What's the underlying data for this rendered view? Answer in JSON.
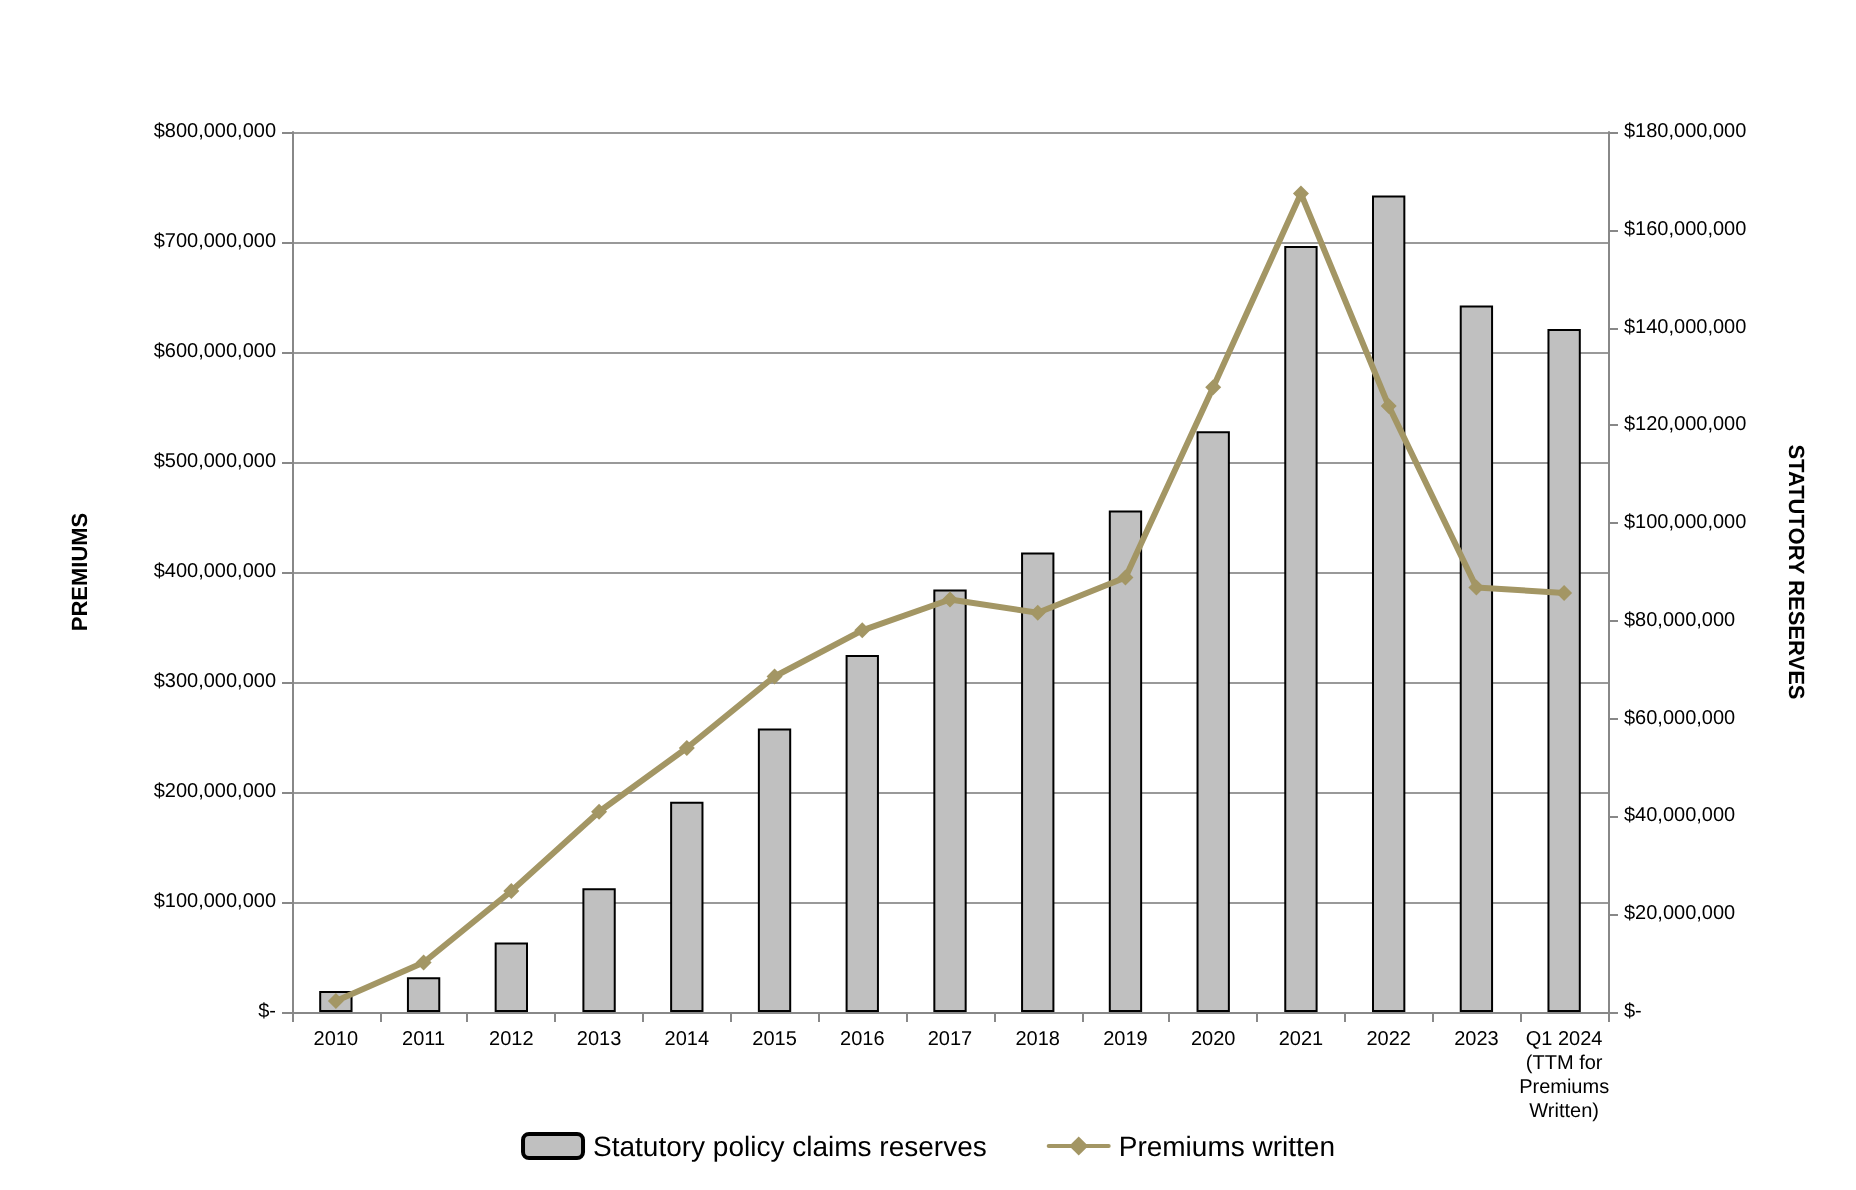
{
  "chart_data": {
    "type": "bar",
    "ylabel": "PREMIUMS",
    "y2label": "STATUTORY RESERVES",
    "categories": [
      "2010",
      "2011",
      "2012",
      "2013",
      "2014",
      "2015",
      "2016",
      "2017",
      "2018",
      "2019",
      "2020",
      "2021",
      "2022",
      "2023",
      "Q1 2024\n(TTM for\nPremiums\nWritten)"
    ],
    "series": [
      {
        "name": "Statutory policy claims reserves",
        "axis": "y2",
        "color": "#c0c0c0",
        "values": [
          4300000,
          7100000,
          14200000,
          25300000,
          43000000,
          58000000,
          73000000,
          86400000,
          94000000,
          102600000,
          118800000,
          156700000,
          167000000,
          144500000,
          139700000
        ]
      },
      {
        "name": "Premiums written",
        "type": "line",
        "axis": "y",
        "color": "#a39664",
        "values": [
          10000000,
          45000000,
          110000000,
          182000000,
          240000000,
          305000000,
          347000000,
          375000000,
          363000000,
          395000000,
          568000000,
          744000000,
          551000000,
          386000000,
          381000000
        ]
      }
    ],
    "ylim": [
      0,
      800000000
    ],
    "yticks": [
      {
        "value": 0,
        "label": "$-"
      },
      {
        "value": 100000000,
        "label": "$100,000,000"
      },
      {
        "value": 200000000,
        "label": "$200,000,000"
      },
      {
        "value": 300000000,
        "label": "$300,000,000"
      },
      {
        "value": 400000000,
        "label": "$400,000,000"
      },
      {
        "value": 500000000,
        "label": "$500,000,000"
      },
      {
        "value": 600000000,
        "label": "$600,000,000"
      },
      {
        "value": 700000000,
        "label": "$700,000,000"
      },
      {
        "value": 800000000,
        "label": "$800,000,000"
      }
    ],
    "y2lim": [
      0,
      180000000
    ],
    "y2ticks": [
      {
        "value": 0,
        "label": "$-"
      },
      {
        "value": 20000000,
        "label": "$20,000,000"
      },
      {
        "value": 40000000,
        "label": "$40,000,000"
      },
      {
        "value": 60000000,
        "label": "$60,000,000"
      },
      {
        "value": 80000000,
        "label": "$80,000,000"
      },
      {
        "value": 100000000,
        "label": "$100,000,000"
      },
      {
        "value": 120000000,
        "label": "$120,000,000"
      },
      {
        "value": 140000000,
        "label": "$140,000,000"
      },
      {
        "value": 160000000,
        "label": "$160,000,000"
      },
      {
        "value": 180000000,
        "label": "$180,000,000"
      }
    ],
    "grid": "y",
    "legend": "bottom",
    "marker": "diamond",
    "line_style": "solid"
  }
}
